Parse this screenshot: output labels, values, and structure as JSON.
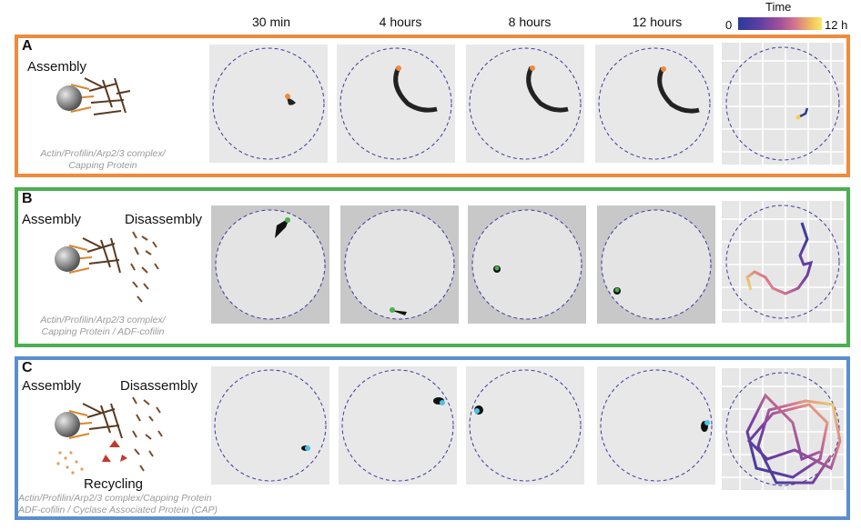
{
  "columns": [
    "30 min",
    "4 hours",
    "8 hours",
    "12 hours"
  ],
  "legend": {
    "title": "Time",
    "min": "0",
    "max": "12 h"
  },
  "panels": [
    {
      "letter": "A",
      "color": "#f08a3c",
      "labels": [
        "Assembly"
      ],
      "caption": [
        "Actin/Profilin/Arp2/3 complex/",
        "Capping Protein"
      ]
    },
    {
      "letter": "B",
      "color": "#4caf50",
      "labels": [
        "Assembly",
        "Disassembly"
      ],
      "caption": [
        "Actin/Profilin/Arp2/3 complex/",
        "Capping Protein / ADF-cofilin"
      ]
    },
    {
      "letter": "C",
      "color": "#5b8fcf",
      "labels": [
        "Assembly",
        "Disassembly",
        "Recycling"
      ],
      "caption": [
        "Actin/Profilin/Arp2/3 complex/Capping Protein",
        "ADF-cofilin / Cyclase Associated Protein (CAP)"
      ]
    }
  ]
}
